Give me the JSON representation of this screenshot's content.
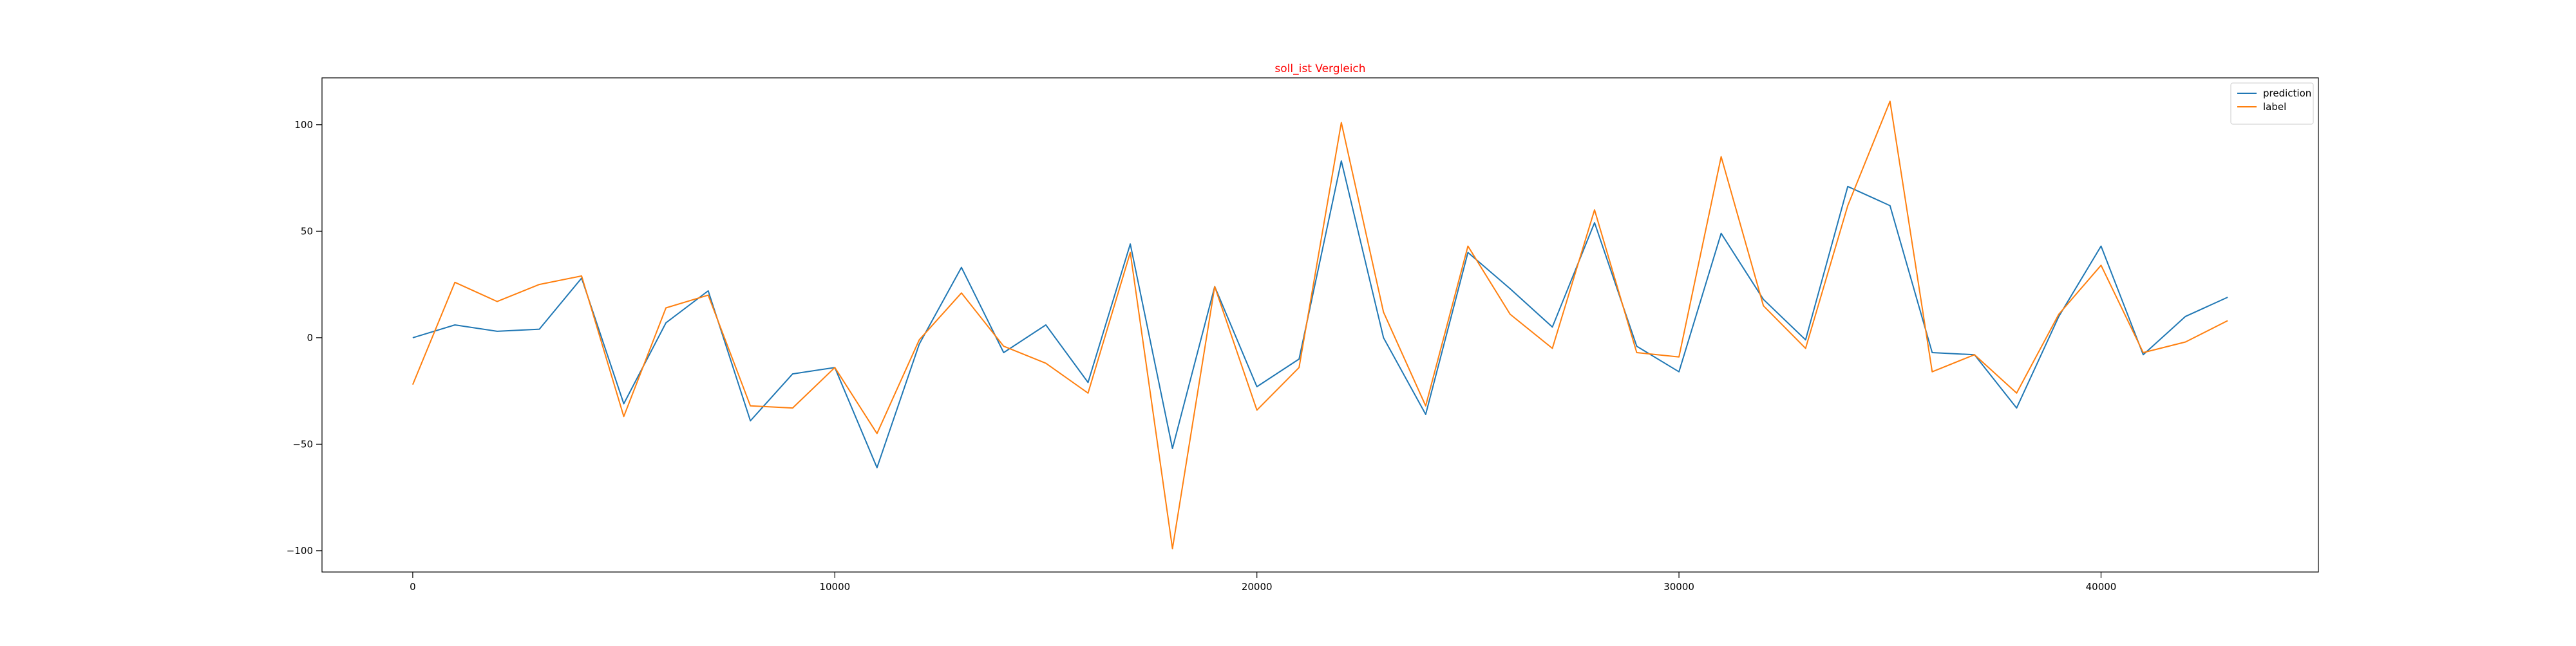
{
  "chart_data": {
    "type": "line",
    "title": "soll_ist Vergleich",
    "title_color": "#ff0000",
    "xlabel": "",
    "ylabel": "",
    "xlim": [
      -2150,
      45150
    ],
    "ylim": [
      -110,
      122
    ],
    "x_ticks": [
      0,
      10000,
      20000,
      30000,
      40000
    ],
    "y_ticks": [
      -100,
      -50,
      0,
      50,
      100
    ],
    "grid": false,
    "legend_position": "top-right",
    "x": [
      0,
      1000,
      2000,
      3000,
      4000,
      5000,
      6000,
      7000,
      8000,
      9000,
      10000,
      11000,
      12000,
      13000,
      14000,
      15000,
      16000,
      17000,
      18000,
      19000,
      20000,
      21000,
      22000,
      23000,
      24000,
      25000,
      26000,
      27000,
      28000,
      29000,
      30000,
      31000,
      32000,
      33000,
      34000,
      35000,
      36000,
      37000,
      38000,
      39000,
      40000,
      41000,
      42000,
      43000
    ],
    "series": [
      {
        "name": "prediction",
        "color": "#1f77b4",
        "values": [
          0,
          6,
          3,
          4,
          28,
          -31,
          7,
          22,
          -39,
          -17,
          -14,
          -61,
          -3,
          33,
          -7,
          6,
          -21,
          44,
          -52,
          24,
          -23,
          -10,
          83,
          0,
          -36,
          40,
          23,
          5,
          54,
          -4,
          -16,
          49,
          18,
          -1,
          71,
          62,
          -7,
          -8,
          -33,
          10,
          43,
          -8,
          10,
          19
        ]
      },
      {
        "name": "label",
        "color": "#ff7f0e",
        "values": [
          -22,
          26,
          17,
          25,
          29,
          -37,
          14,
          20,
          -32,
          -33,
          -14,
          -45,
          -1,
          21,
          -4,
          -12,
          -26,
          40,
          -99,
          24,
          -34,
          -14,
          101,
          12,
          -32,
          43,
          11,
          -5,
          60,
          -7,
          -9,
          85,
          15,
          -5,
          62,
          111,
          -16,
          -8,
          -26,
          11,
          34,
          -7,
          -2,
          8
        ]
      }
    ]
  }
}
